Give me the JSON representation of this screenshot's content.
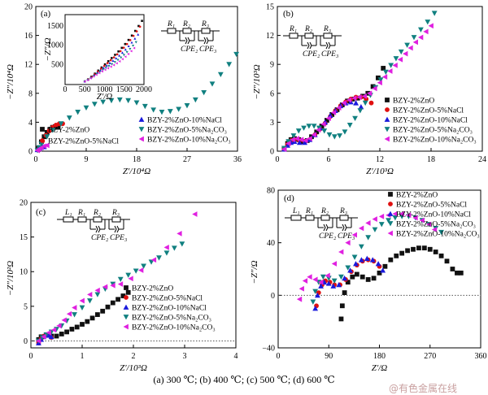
{
  "colors": {
    "BZY-2%ZnO": "#111111",
    "BZY-2%ZnO-5%NaCl": "#e01010",
    "BZY-2%ZnO-10%NaCl": "#1a1adc",
    "BZY-2%ZnO-5%Na2CO3": "#118080",
    "BZY-2%ZnO-10%Na2CO3": "#e020e0"
  },
  "caption": "(a) 300 ℃; (b) 400 ℃; (c) 500 ℃; (d) 600 ℃",
  "watermark": "@有色金属在线",
  "chart_data": [
    {
      "type": "scatter",
      "panel": "(a)",
      "xlabel": "Z′/10⁴Ω",
      "ylabel": "−Z″/10⁴Ω",
      "xlim": [
        0,
        36
      ],
      "ylim": [
        0,
        20
      ],
      "xticks": [
        "0",
        "9",
        "18",
        "27",
        "36"
      ],
      "yticks": [
        "0",
        "4",
        "8",
        "12",
        "16",
        "20"
      ],
      "circuit": [
        "R₁",
        "R₂",
        "R₃",
        "CPE₂",
        "CPE₃"
      ],
      "legend": [
        "BZY-2%ZnO",
        "BZY-2%ZnO-5%NaCl",
        "BZY-2%ZnO-10%NaCl",
        "BZY-2%ZnO-5%Na₂CO₃",
        "BZY-2%ZnO-10%Na₂CO₃"
      ],
      "series": [
        {
          "name": "BZY-2%ZnO",
          "x": [
            0.5,
            1,
            1.5,
            2,
            2.5,
            3,
            3.5,
            4
          ],
          "y": [
            0.4,
            1.3,
            2,
            2.6,
            3,
            3.3,
            3.4,
            3.3
          ]
        },
        {
          "name": "BZY-2%ZnO-5%NaCl",
          "x": [
            0.6,
            1.2,
            1.8,
            2.4,
            3,
            3.6,
            4.2,
            4.8
          ],
          "y": [
            0.5,
            1.4,
            2.2,
            2.8,
            3.3,
            3.6,
            3.8,
            3.8
          ]
        },
        {
          "name": "BZY-2%ZnO-10%NaCl",
          "x": [
            0.3,
            0.6,
            0.9,
            1.2,
            1.5
          ],
          "y": [
            0.2,
            0.4,
            0.5,
            0.6,
            0.6
          ]
        },
        {
          "name": "BZY-2%ZnO-5%Na₂CO₃",
          "x": [
            0.3,
            0.6,
            1,
            2,
            3,
            4.5,
            6,
            7.5,
            9,
            10.5,
            12,
            13.5,
            15,
            16.5,
            18,
            19.5,
            21,
            22.5,
            24,
            25.5,
            27,
            28.5,
            30,
            31.5,
            33,
            34.5,
            35.8
          ],
          "y": [
            0.1,
            0.5,
            1,
            2,
            2.9,
            3.8,
            4.6,
            5.4,
            6,
            6.5,
            6.8,
            7,
            7.1,
            7,
            6.7,
            6.2,
            5.7,
            5.4,
            5.5,
            5.8,
            6.3,
            7.1,
            8.1,
            9.3,
            10.6,
            12,
            13.4
          ]
        },
        {
          "name": "BZY-2%ZnO-10%Na₂CO₃",
          "x": [
            0.3,
            0.6,
            1,
            1.5,
            2
          ],
          "y": [
            0.1,
            0.3,
            0.5,
            0.7,
            0.8
          ]
        }
      ],
      "inset": {
        "xlabel": "Z′/Ω",
        "ylabel": "−Z″/Ω",
        "xlim": [
          0,
          2000
        ],
        "ylim": [
          0,
          1800
        ],
        "xticks": [
          "0",
          "500",
          "1000",
          "1500",
          "2000"
        ],
        "yticks": [
          "500",
          "1000",
          "1500"
        ]
      }
    },
    {
      "type": "scatter",
      "panel": "(b)",
      "xlabel": "Z′/10³Ω",
      "ylabel": "−Z″/10³Ω",
      "xlim": [
        0,
        24
      ],
      "ylim": [
        0,
        15
      ],
      "xticks": [
        "0",
        "6",
        "12",
        "18",
        "24"
      ],
      "yticks": [
        "0",
        "3",
        "6",
        "9",
        "12",
        "15"
      ],
      "circuit": [
        "R₁",
        "R₂",
        "R₃",
        "CPE₂",
        "CPE₃"
      ],
      "legend": [
        "BZY-2%ZnO",
        "BZY-2%ZnO-5%NaCl",
        "BZY-2%ZnO-10%NaCl",
        "BZY-2%ZnO-5%Na₂CO₃",
        "BZY-2%ZnO-10%Na₂CO₃"
      ],
      "series": [
        {
          "name": "BZY-2%ZnO",
          "x": [
            0.8,
            1.2,
            1.6,
            2,
            2.5,
            3,
            3.5,
            4,
            4.6,
            5.2,
            5.8,
            6.4,
            7,
            7.6,
            8.2,
            8.8,
            9.4,
            10,
            10.6,
            11.2,
            11.8,
            12.4
          ],
          "y": [
            0.2,
            0.8,
            1.2,
            1.3,
            1.2,
            1,
            1.1,
            1.5,
            2,
            2.6,
            3.2,
            3.8,
            4.3,
            4.8,
            5.2,
            5.4,
            5.5,
            5.7,
            6,
            6.7,
            7.6,
            8.6
          ]
        },
        {
          "name": "BZY-2%ZnO-5%NaCl",
          "x": [
            0.8,
            1.2,
            1.6,
            2,
            2.6,
            3.2,
            3.8,
            4.4,
            5,
            5.6,
            6.2,
            6.8,
            7.4,
            8,
            8.6,
            9.2,
            9.8,
            10.4,
            11
          ],
          "y": [
            0.2,
            0.7,
            1.1,
            1.2,
            1.1,
            1,
            1.2,
            1.7,
            2.3,
            2.9,
            3.6,
            4.2,
            4.7,
            5.1,
            5.4,
            5.6,
            5.6,
            5.4,
            5
          ]
        },
        {
          "name": "BZY-2%ZnO-10%NaCl",
          "x": [
            0.8,
            1.2,
            1.6,
            2,
            2.6,
            3.2,
            3.8,
            4.4,
            5,
            5.6,
            6.2,
            6.8,
            7.4,
            8,
            8.6,
            9.2,
            9.8
          ],
          "y": [
            0.2,
            0.6,
            0.9,
            1,
            0.9,
            0.9,
            1.2,
            1.7,
            2.4,
            3,
            3.7,
            4.2,
            4.7,
            5,
            5.1,
            5,
            4.6
          ]
        },
        {
          "name": "BZY-2%ZnO-5%Na₂CO₃",
          "x": [
            0.8,
            1.3,
            1.9,
            2.5,
            3.1,
            3.7,
            4.3,
            4.9,
            5.5,
            6.1,
            6.7,
            7.3,
            7.9,
            8.5,
            9.1,
            9.7,
            10.3,
            10.9,
            11.5,
            12.1,
            12.7,
            13.3,
            13.9,
            14.5,
            15.2,
            16,
            16.8,
            17.6,
            18.4
          ],
          "y": [
            0.3,
            1,
            1.6,
            2.1,
            2.4,
            2.6,
            2.6,
            2.4,
            2.1,
            1.7,
            1.5,
            1.6,
            2,
            2.7,
            3.4,
            4.2,
            5,
            5.8,
            6.6,
            7.4,
            8.2,
            8.9,
            9.6,
            10.3,
            11,
            11.8,
            12.6,
            13.4,
            14.3
          ]
        },
        {
          "name": "BZY-2%ZnO-10%Na₂CO₃",
          "x": [
            0.8,
            1.3,
            1.8,
            2.3,
            2.8,
            3.3,
            3.8,
            4.3,
            4.8,
            5.4,
            6,
            6.6,
            7.2,
            7.8,
            8.4,
            9,
            9.6,
            10.2,
            10.8,
            11.4,
            12,
            12.6,
            13.2,
            13.8,
            14.4,
            15,
            15.6,
            16.2,
            16.8,
            17.4,
            18
          ],
          "y": [
            0.2,
            0.8,
            1.2,
            1.3,
            1.2,
            1.1,
            1.3,
            1.7,
            2.2,
            2.8,
            3.4,
            4,
            4.5,
            5,
            5.3,
            5.5,
            5.6,
            5.7,
            6,
            6.5,
            7.1,
            7.7,
            8.3,
            8.9,
            9.5,
            10.1,
            10.7,
            11.3,
            11.8,
            12.4,
            13
          ]
        }
      ]
    },
    {
      "type": "scatter",
      "panel": "(c)",
      "xlabel": "Z′/10³Ω",
      "ylabel": "−Z″/10²Ω",
      "xlim": [
        0,
        4
      ],
      "ylim": [
        -1,
        20
      ],
      "xticks": [
        "0",
        "1",
        "2",
        "3",
        "4"
      ],
      "yticks": [
        "0",
        "5",
        "10",
        "15",
        "20"
      ],
      "circuit": [
        "L₁",
        "R₁",
        "R₂",
        "R₃",
        "CPE₂",
        "CPE₃"
      ],
      "legend": [
        "BZY-2%ZnO",
        "BZY-2%ZnO-5%NaCl",
        "BZY-2%ZnO-10%NaCl",
        "BZY-2%ZnO-5%Na₂CO₃",
        "BZY-2%ZnO-10%Na₂CO₃"
      ],
      "series": [
        {
          "name": "BZY-2%ZnO",
          "x": [
            0.15,
            0.2,
            0.3,
            0.4,
            0.5,
            0.6,
            0.7,
            0.8,
            0.9,
            1,
            1.1,
            1.2,
            1.3,
            1.4,
            1.5,
            1.6,
            1.7,
            1.8,
            1.9
          ],
          "y": [
            0.2,
            0.6,
            0.8,
            0.7,
            0.7,
            1,
            1.3,
            1.7,
            2,
            2.4,
            2.8,
            3.3,
            3.8,
            4.3,
            4.9,
            5.5,
            6,
            6.5,
            7
          ]
        },
        {
          "name": "BZY-2%ZnO-5%NaCl",
          "x": [
            0.15,
            0.2,
            0.25,
            0.3,
            0.35,
            0.4
          ],
          "y": [
            -0.3,
            0.3,
            0.7,
            0.9,
            0.8,
            0.5
          ]
        },
        {
          "name": "BZY-2%ZnO-10%NaCl",
          "x": [
            0.15,
            0.2,
            0.25,
            0.3,
            0.35,
            0.4
          ],
          "y": [
            -0.3,
            0.2,
            0.6,
            0.8,
            0.8,
            0.6
          ]
        },
        {
          "name": "BZY-2%ZnO-5%Na₂CO₃",
          "x": [
            0.15,
            0.22,
            0.3,
            0.4,
            0.5,
            0.6,
            0.7,
            0.85,
            1,
            1.15,
            1.3,
            1.45,
            1.6,
            1.75,
            1.9,
            2.05,
            2.2,
            2.35,
            2.5,
            2.65,
            2.8,
            2.95
          ],
          "y": [
            0,
            0.5,
            0.9,
            1.3,
            1.7,
            2.2,
            2.9,
            3.8,
            4.8,
            5.8,
            6.7,
            7.5,
            8.2,
            8.9,
            9.5,
            10.1,
            10.8,
            11.4,
            12,
            12.7,
            13.4,
            14
          ]
        },
        {
          "name": "BZY-2%ZnO-10%Na₂CO₃",
          "x": [
            0.15,
            0.25,
            0.35,
            0.45,
            0.55,
            0.65,
            0.75,
            0.85,
            1,
            1.15,
            1.3,
            1.45,
            1.6,
            1.75,
            1.95,
            2.15,
            2.4,
            2.65,
            2.9,
            3.2
          ],
          "y": [
            0,
            0.6,
            1.2,
            1.6,
            2.2,
            3,
            3.9,
            4.8,
            5.8,
            6.7,
            7.3,
            7.8,
            8,
            8.2,
            9,
            10.2,
            11.7,
            13.5,
            15.5,
            18.3
          ]
        }
      ]
    },
    {
      "type": "scatter",
      "panel": "(d)",
      "xlabel": "Z′/Ω",
      "ylabel": "−Z″/Ω",
      "xlim": [
        0,
        360
      ],
      "ylim": [
        -40,
        80
      ],
      "xticks": [
        "0",
        "90",
        "180",
        "270",
        "360"
      ],
      "yticks": [
        "−40",
        "0",
        "40",
        "80"
      ],
      "circuit": [
        "L₁",
        "R₁",
        "R₂",
        "R₃",
        "CPE₂",
        "CPE₃"
      ],
      "legend": [
        "BZY-2%ZnO",
        "BZY-2%ZnO-5%NaCl",
        "BZY-2%ZnO-10%NaCl",
        "BZY-2%ZnO-5%Na₂CO₃",
        "BZY-2%ZnO-10%Na₂CO₃"
      ],
      "series": [
        {
          "name": "BZY-2%ZnO",
          "x": [
            112,
            114,
            118,
            124,
            132,
            140,
            150,
            160,
            170,
            180,
            190,
            200,
            210,
            220,
            230,
            240,
            250,
            260,
            270,
            280,
            290,
            300,
            310,
            318,
            325
          ],
          "y": [
            -18,
            -8,
            2,
            10,
            14,
            16,
            14,
            12,
            13,
            17,
            22,
            27,
            30,
            32,
            34,
            35,
            36,
            36,
            35,
            33,
            30,
            26,
            20,
            17,
            17
          ]
        },
        {
          "name": "BZY-2%ZnO-5%NaCl",
          "x": [
            68,
            72,
            78,
            84,
            92,
            100,
            110,
            120,
            130,
            140,
            150,
            160,
            170,
            180
          ],
          "y": [
            -8,
            2,
            8,
            11,
            10,
            8,
            8,
            12,
            18,
            23,
            26,
            27,
            26,
            22
          ]
        },
        {
          "name": "BZY-2%ZnO-10%NaCl",
          "x": [
            66,
            70,
            76,
            82,
            90,
            98,
            108,
            118,
            128,
            138,
            148,
            158,
            168,
            178,
            186
          ],
          "y": [
            -10,
            0,
            7,
            10,
            9,
            7,
            8,
            13,
            19,
            24,
            27,
            28,
            27,
            24,
            19
          ]
        },
        {
          "name": "BZY-2%ZnO-5%Na₂CO₃",
          "x": [
            62,
            66,
            72,
            80,
            90,
            100,
            112,
            124,
            136,
            148,
            160,
            172,
            184,
            196,
            208,
            220,
            232,
            244,
            256,
            268,
            280,
            290
          ],
          "y": [
            -5,
            3,
            10,
            14,
            13,
            11,
            14,
            21,
            29,
            37,
            44,
            50,
            54,
            57,
            59,
            60,
            60,
            59,
            57,
            54,
            51,
            48
          ]
        },
        {
          "name": "BZY-2%ZnO-10%Na₂CO₃",
          "x": [
            38,
            42,
            48,
            56,
            66,
            76,
            88,
            100,
            112,
            124,
            136,
            148,
            160,
            172,
            184,
            196,
            208,
            220,
            232,
            244,
            256,
            268,
            278
          ],
          "y": [
            -3,
            5,
            11,
            14,
            12,
            10,
            15,
            24,
            33,
            40,
            46,
            51,
            55,
            58,
            60,
            61,
            62,
            62,
            61,
            59,
            57,
            54,
            50
          ]
        }
      ]
    }
  ]
}
